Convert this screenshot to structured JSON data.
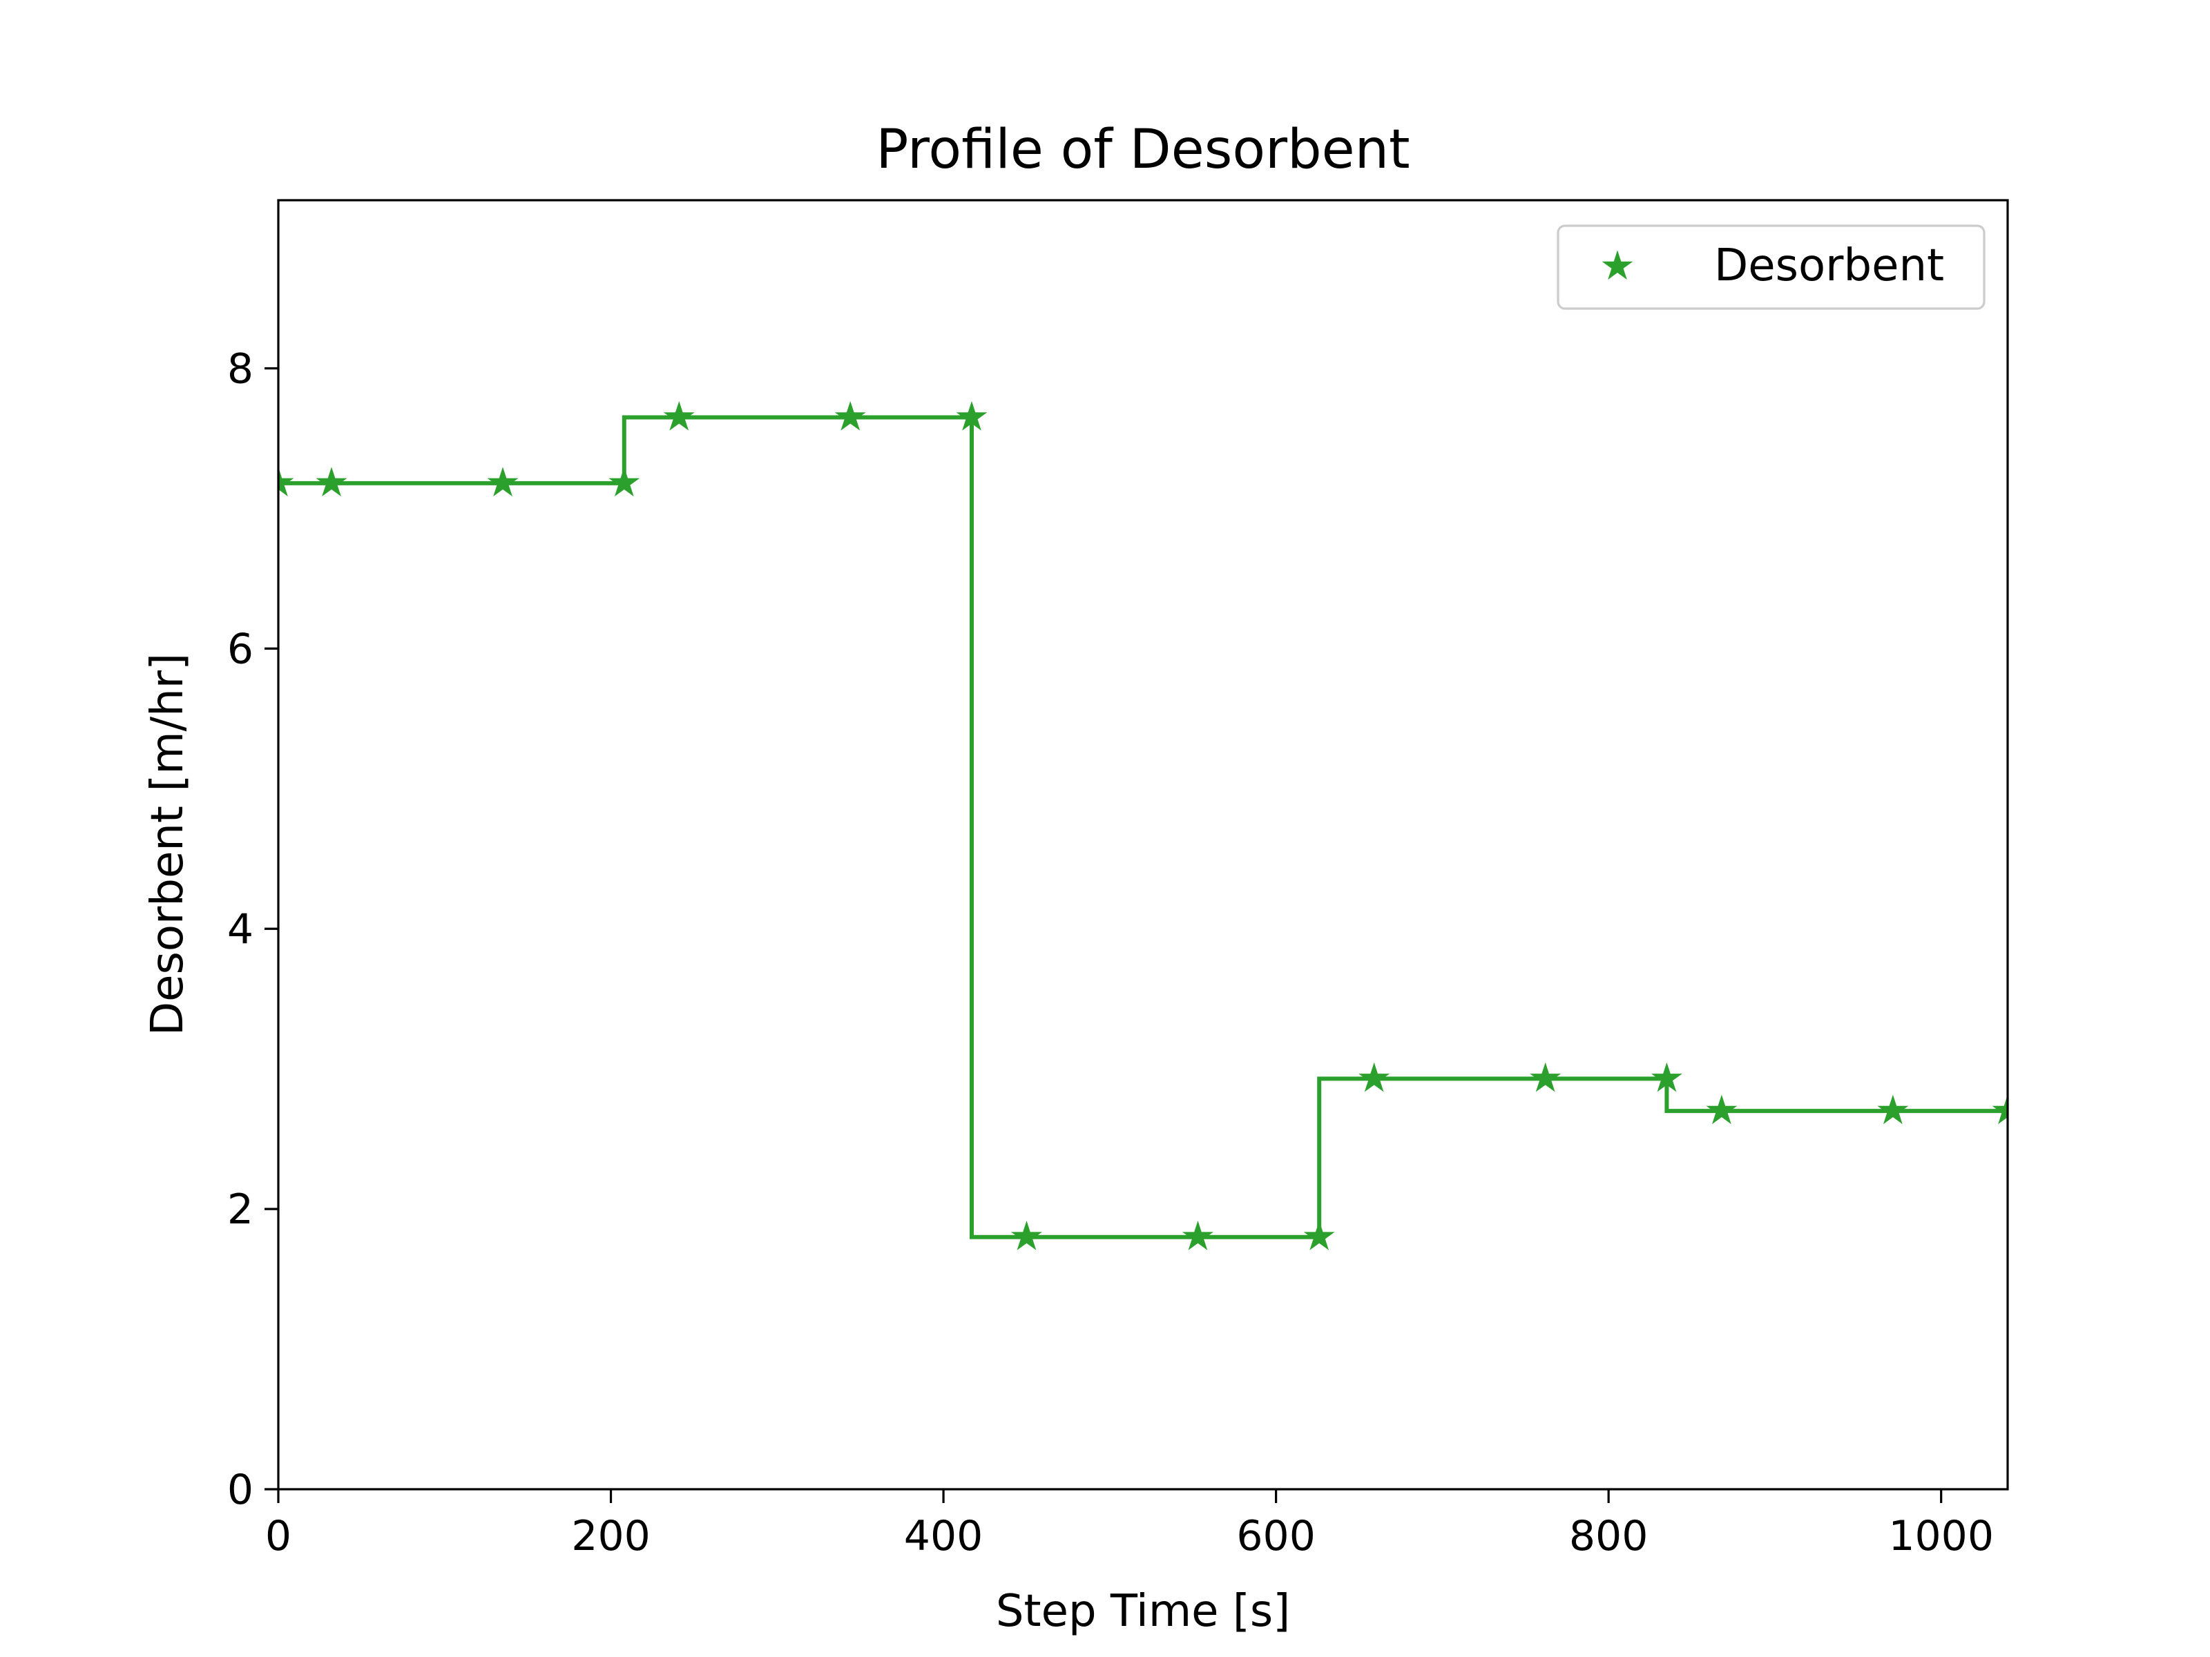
{
  "chart_data": {
    "type": "line",
    "title": "Profile of Desorbent",
    "xlabel": "Step Time [s]",
    "ylabel": "Desorbent [m/hr]",
    "xlim": [
      0,
      1040
    ],
    "ylim": [
      0,
      9.2
    ],
    "xticks": [
      0,
      200,
      400,
      600,
      800,
      1000
    ],
    "yticks": [
      0,
      2,
      4,
      6,
      8
    ],
    "grid": false,
    "legend_position": "top-right",
    "series": [
      {
        "name": "Desorbent",
        "color": "#2ca02c",
        "marker": "star",
        "drawstyle": "steps",
        "x": [
          0,
          32,
          135,
          208,
          208,
          241,
          344,
          417,
          417,
          450,
          553,
          626,
          626,
          659,
          762,
          835,
          835,
          868,
          971,
          1040
        ],
        "y": [
          7.18,
          7.18,
          7.18,
          7.18,
          7.65,
          7.65,
          7.65,
          7.65,
          1.8,
          1.8,
          1.8,
          1.8,
          2.93,
          2.93,
          2.93,
          2.93,
          2.7,
          2.7,
          2.7,
          2.7
        ],
        "marker_x": [
          0,
          32,
          135,
          208,
          241,
          344,
          417,
          450,
          553,
          626,
          659,
          762,
          835,
          868,
          971,
          1040
        ],
        "marker_y": [
          7.18,
          7.18,
          7.18,
          7.18,
          7.65,
          7.65,
          7.65,
          1.8,
          1.8,
          1.8,
          2.93,
          2.93,
          2.93,
          2.7,
          2.7,
          2.7
        ]
      }
    ]
  }
}
